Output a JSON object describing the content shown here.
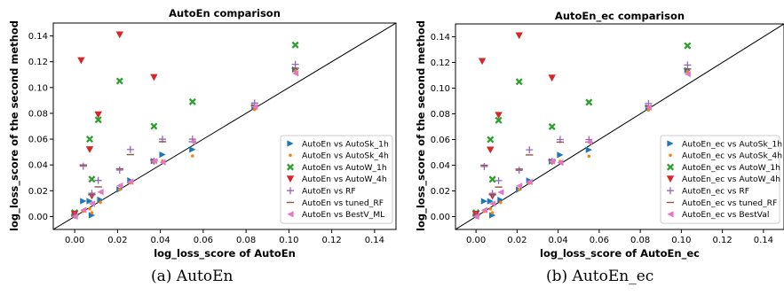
{
  "captions": [
    "(a) AutoEn",
    "(b) AutoEn_ec"
  ],
  "chart_data": [
    {
      "type": "scatter",
      "title": "AutoEn comparison",
      "xlabel": "log_loss_score of AutoEn",
      "ylabel": "log_loss_score of the second method",
      "xlim": [
        -0.01,
        0.15
      ],
      "ylim": [
        -0.01,
        0.15
      ],
      "xticks": [
        "0.00",
        "0.02",
        "0.04",
        "0.06",
        "0.08",
        "0.10",
        "0.12",
        "0.14"
      ],
      "yticks": [
        "0.00",
        "0.02",
        "0.04",
        "0.06",
        "0.08",
        "0.10",
        "0.12",
        "0.14"
      ],
      "diagonal": "y = x",
      "grid": false,
      "legend_position": "lower-right",
      "series": [
        {
          "name": "AutoEn vs AutoSk_1h",
          "marker": "triangle-right",
          "color": "#1f77b4",
          "points": [
            [
              0.0,
              0.002
            ],
            [
              0.004,
              0.012
            ],
            [
              0.007,
              0.012
            ],
            [
              0.008,
              0.001
            ],
            [
              0.012,
              0.013
            ],
            [
              0.021,
              0.021
            ],
            [
              0.026,
              0.028
            ],
            [
              0.037,
              0.043
            ],
            [
              0.041,
              0.048
            ],
            [
              0.055,
              0.052
            ],
            [
              0.084,
              0.085
            ],
            [
              0.103,
              0.114
            ]
          ]
        },
        {
          "name": "AutoEn vs AutoSk_4h",
          "marker": "dot",
          "color": "#ff7f0e",
          "points": [
            [
              0.0,
              0.001
            ],
            [
              0.004,
              0.004
            ],
            [
              0.007,
              0.006
            ],
            [
              0.008,
              0.003
            ],
            [
              0.012,
              0.011
            ],
            [
              0.021,
              0.021
            ],
            [
              0.026,
              0.026
            ],
            [
              0.037,
              0.042
            ],
            [
              0.041,
              0.043
            ],
            [
              0.055,
              0.047
            ],
            [
              0.084,
              0.083
            ],
            [
              0.103,
              0.113
            ]
          ]
        },
        {
          "name": "AutoEn vs AutoW_1h",
          "marker": "x",
          "color": "#2ca02c",
          "points": [
            [
              0.0,
              0.003
            ],
            [
              0.007,
              0.06
            ],
            [
              0.008,
              0.029
            ],
            [
              0.011,
              0.075
            ],
            [
              0.021,
              0.105
            ],
            [
              0.037,
              0.07
            ],
            [
              0.055,
              0.089
            ],
            [
              0.103,
              0.133
            ]
          ]
        },
        {
          "name": "AutoEn vs AutoW_4h",
          "marker": "triangle-down",
          "color": "#d62728",
          "points": [
            [
              0.0,
              0.002
            ],
            [
              0.003,
              0.121
            ],
            [
              0.007,
              0.052
            ],
            [
              0.008,
              0.016
            ],
            [
              0.011,
              0.079
            ],
            [
              0.021,
              0.141
            ],
            [
              0.037,
              0.108
            ]
          ]
        },
        {
          "name": "AutoEn vs RF",
          "marker": "plus",
          "color": "#9467bd",
          "points": [
            [
              0.0,
              0.001
            ],
            [
              0.004,
              0.039
            ],
            [
              0.008,
              0.018
            ],
            [
              0.011,
              0.028
            ],
            [
              0.021,
              0.036
            ],
            [
              0.026,
              0.052
            ],
            [
              0.037,
              0.043
            ],
            [
              0.041,
              0.06
            ],
            [
              0.055,
              0.06
            ],
            [
              0.084,
              0.088
            ],
            [
              0.103,
              0.118
            ]
          ]
        },
        {
          "name": "AutoEn vs tuned_RF",
          "marker": "hline",
          "color": "#8c564b",
          "points": [
            [
              0.0,
              0.001
            ],
            [
              0.004,
              0.04
            ],
            [
              0.008,
              0.017
            ],
            [
              0.011,
              0.023
            ],
            [
              0.021,
              0.037
            ],
            [
              0.026,
              0.048
            ],
            [
              0.037,
              0.044
            ],
            [
              0.041,
              0.058
            ],
            [
              0.055,
              0.058
            ],
            [
              0.084,
              0.086
            ],
            [
              0.103,
              0.115
            ]
          ]
        },
        {
          "name": "AutoEn vs BestV_ML",
          "marker": "triangle-left",
          "color": "#e377c2",
          "points": [
            [
              0.0,
              0.0
            ],
            [
              0.004,
              0.005
            ],
            [
              0.008,
              0.01
            ],
            [
              0.012,
              0.019
            ],
            [
              0.021,
              0.024
            ],
            [
              0.026,
              0.027
            ],
            [
              0.037,
              0.043
            ],
            [
              0.041,
              0.042
            ],
            [
              0.055,
              0.058
            ],
            [
              0.084,
              0.085
            ],
            [
              0.103,
              0.111
            ]
          ]
        }
      ]
    },
    {
      "type": "scatter",
      "title": "AutoEn_ec comparison",
      "xlabel": "log_loss_score of AutoEn_ec",
      "ylabel": "log_loss_score of the second method",
      "xlim": [
        -0.01,
        0.15
      ],
      "ylim": [
        -0.01,
        0.15
      ],
      "xticks": [
        "0.00",
        "0.02",
        "0.04",
        "0.06",
        "0.08",
        "0.10",
        "0.12",
        "0.14"
      ],
      "yticks": [
        "0.00",
        "0.02",
        "0.04",
        "0.06",
        "0.08",
        "0.10",
        "0.12",
        "0.14"
      ],
      "diagonal": "y = x",
      "grid": false,
      "legend_position": "lower-right",
      "series": [
        {
          "name": "AutoEn_ec vs AutoSk_1h",
          "marker": "triangle-right",
          "color": "#1f77b4",
          "points": [
            [
              0.0,
              0.002
            ],
            [
              0.004,
              0.012
            ],
            [
              0.007,
              0.012
            ],
            [
              0.008,
              0.001
            ],
            [
              0.012,
              0.013
            ],
            [
              0.021,
              0.021
            ],
            [
              0.026,
              0.028
            ],
            [
              0.037,
              0.043
            ],
            [
              0.041,
              0.048
            ],
            [
              0.055,
              0.052
            ],
            [
              0.084,
              0.085
            ],
            [
              0.103,
              0.114
            ]
          ]
        },
        {
          "name": "AutoEn_ec vs AutoSk_4h",
          "marker": "dot",
          "color": "#ff7f0e",
          "points": [
            [
              0.0,
              0.001
            ],
            [
              0.004,
              0.004
            ],
            [
              0.007,
              0.006
            ],
            [
              0.008,
              0.003
            ],
            [
              0.012,
              0.011
            ],
            [
              0.021,
              0.021
            ],
            [
              0.026,
              0.026
            ],
            [
              0.037,
              0.042
            ],
            [
              0.041,
              0.043
            ],
            [
              0.055,
              0.047
            ],
            [
              0.084,
              0.083
            ],
            [
              0.103,
              0.113
            ]
          ]
        },
        {
          "name": "AutoEn_ec vs AutoW_1h",
          "marker": "x",
          "color": "#2ca02c",
          "points": [
            [
              0.0,
              0.003
            ],
            [
              0.007,
              0.06
            ],
            [
              0.008,
              0.029
            ],
            [
              0.011,
              0.075
            ],
            [
              0.021,
              0.105
            ],
            [
              0.037,
              0.07
            ],
            [
              0.055,
              0.089
            ],
            [
              0.103,
              0.133
            ]
          ]
        },
        {
          "name": "AutoEn_ec vs AutoW_4h",
          "marker": "triangle-down",
          "color": "#d62728",
          "points": [
            [
              0.0,
              0.002
            ],
            [
              0.003,
              0.121
            ],
            [
              0.007,
              0.052
            ],
            [
              0.008,
              0.016
            ],
            [
              0.011,
              0.079
            ],
            [
              0.021,
              0.141
            ],
            [
              0.037,
              0.108
            ]
          ]
        },
        {
          "name": "AutoEn_ec vs RF",
          "marker": "plus",
          "color": "#9467bd",
          "points": [
            [
              0.0,
              0.001
            ],
            [
              0.004,
              0.039
            ],
            [
              0.008,
              0.018
            ],
            [
              0.011,
              0.028
            ],
            [
              0.021,
              0.036
            ],
            [
              0.026,
              0.052
            ],
            [
              0.037,
              0.043
            ],
            [
              0.041,
              0.06
            ],
            [
              0.055,
              0.06
            ],
            [
              0.084,
              0.088
            ],
            [
              0.103,
              0.118
            ]
          ]
        },
        {
          "name": "AutoEn_ec vs tuned_RF",
          "marker": "hline",
          "color": "#8c564b",
          "points": [
            [
              0.0,
              0.001
            ],
            [
              0.004,
              0.04
            ],
            [
              0.008,
              0.017
            ],
            [
              0.011,
              0.023
            ],
            [
              0.021,
              0.037
            ],
            [
              0.026,
              0.048
            ],
            [
              0.037,
              0.044
            ],
            [
              0.041,
              0.058
            ],
            [
              0.055,
              0.058
            ],
            [
              0.084,
              0.086
            ],
            [
              0.103,
              0.115
            ]
          ]
        },
        {
          "name": "AutoEn_ec vs BestVal",
          "marker": "triangle-left",
          "color": "#e377c2",
          "points": [
            [
              0.0,
              0.0
            ],
            [
              0.004,
              0.005
            ],
            [
              0.008,
              0.01
            ],
            [
              0.012,
              0.019
            ],
            [
              0.021,
              0.024
            ],
            [
              0.026,
              0.027
            ],
            [
              0.037,
              0.043
            ],
            [
              0.041,
              0.042
            ],
            [
              0.055,
              0.058
            ],
            [
              0.084,
              0.085
            ],
            [
              0.103,
              0.111
            ]
          ]
        }
      ]
    }
  ]
}
